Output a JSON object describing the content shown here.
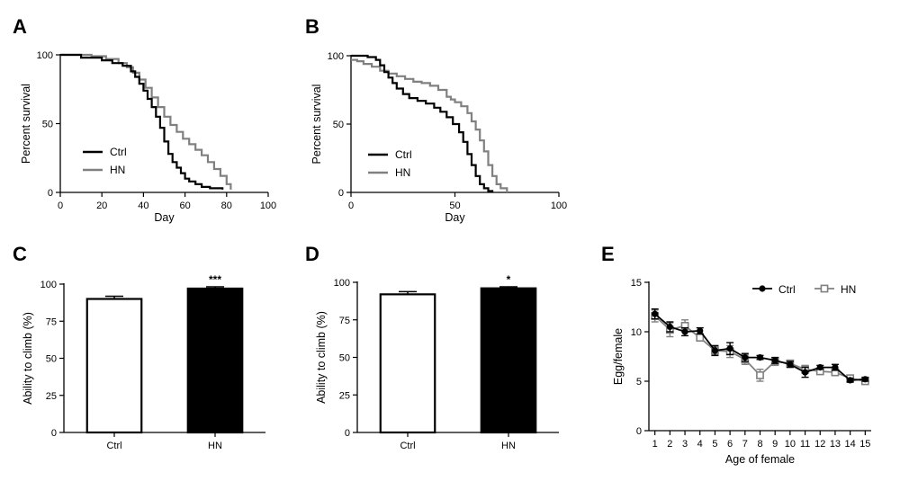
{
  "chart_data": [
    {
      "panel": "A",
      "type": "line",
      "xlabel": "Day",
      "ylabel": "Percent survival",
      "xlim": [
        0,
        100
      ],
      "ylim": [
        0,
        100
      ],
      "xticks": [
        0,
        20,
        40,
        60,
        80,
        100
      ],
      "yticks": [
        0,
        50,
        100
      ],
      "legend_position": "bottom-left",
      "series": [
        {
          "name": "Ctrl",
          "color": "#000000",
          "x": [
            0,
            10,
            20,
            25,
            30,
            34,
            36,
            38,
            40,
            42,
            44,
            46,
            48,
            50,
            52,
            54,
            56,
            58,
            60,
            62,
            65,
            68,
            72,
            78
          ],
          "y": [
            100,
            98,
            96,
            94,
            92,
            88,
            84,
            79,
            74,
            68,
            62,
            55,
            47,
            37,
            28,
            22,
            18,
            14,
            10,
            8,
            6,
            4,
            3,
            2
          ]
        },
        {
          "name": "HN",
          "color": "#808080",
          "x": [
            0,
            15,
            22,
            28,
            32,
            35,
            38,
            41,
            44,
            47,
            50,
            53,
            56,
            59,
            62,
            65,
            68,
            71,
            74,
            77,
            80,
            82
          ],
          "y": [
            100,
            99,
            97,
            94,
            91,
            87,
            82,
            76,
            69,
            62,
            55,
            49,
            44,
            39,
            35,
            31,
            27,
            22,
            17,
            12,
            6,
            2
          ]
        }
      ]
    },
    {
      "panel": "B",
      "type": "line",
      "xlabel": "Day",
      "ylabel": "Percent survival",
      "xlim": [
        0,
        100
      ],
      "ylim": [
        0,
        100
      ],
      "xticks": [
        0,
        50,
        100
      ],
      "yticks": [
        0,
        50,
        100
      ],
      "legend_position": "bottom-left",
      "series": [
        {
          "name": "Ctrl",
          "color": "#000000",
          "x": [
            0,
            8,
            12,
            14,
            16,
            18,
            20,
            22,
            25,
            28,
            32,
            36,
            40,
            43,
            46,
            49,
            52,
            54,
            56,
            58,
            60,
            62,
            64,
            66,
            68
          ],
          "y": [
            100,
            99,
            97,
            93,
            88,
            84,
            80,
            76,
            72,
            69,
            67,
            65,
            62,
            59,
            55,
            50,
            44,
            37,
            28,
            20,
            12,
            6,
            3,
            1,
            0
          ]
        },
        {
          "name": "HN",
          "color": "#808080",
          "x": [
            0,
            3,
            6,
            10,
            14,
            18,
            22,
            26,
            30,
            34,
            38,
            42,
            46,
            48,
            50,
            53,
            56,
            58,
            60,
            62,
            64,
            66,
            68,
            70,
            72,
            75
          ],
          "y": [
            97,
            96,
            94,
            92,
            89,
            87,
            85,
            83,
            81,
            80,
            78,
            75,
            70,
            68,
            66,
            63,
            58,
            52,
            46,
            38,
            30,
            20,
            12,
            6,
            3,
            0
          ]
        }
      ]
    },
    {
      "panel": "C",
      "type": "bar",
      "categories": [
        "Ctrl",
        "HN"
      ],
      "values": [
        90,
        97
      ],
      "errors": [
        1.8,
        1.2
      ],
      "ylabel": "Ability to climb (%)",
      "ylim": [
        0,
        100
      ],
      "yticks": [
        0,
        25,
        50,
        75,
        100
      ],
      "fills": [
        "#ffffff",
        "#000000"
      ],
      "annotations": [
        "",
        "***"
      ]
    },
    {
      "panel": "D",
      "type": "bar",
      "categories": [
        "Ctrl",
        "HN"
      ],
      "values": [
        92,
        96
      ],
      "errors": [
        1.8,
        1.0
      ],
      "ylabel": "Ability to climb (%)",
      "ylim": [
        0,
        100
      ],
      "yticks": [
        0,
        25,
        50,
        75,
        100
      ],
      "fills": [
        "#ffffff",
        "#000000"
      ],
      "annotations": [
        "",
        "*"
      ]
    },
    {
      "panel": "E",
      "type": "line",
      "xlabel": "Age of female",
      "ylabel": "Egg/female",
      "xlim": [
        0.6,
        15.4
      ],
      "ylim": [
        0,
        15
      ],
      "xticks": [
        1,
        2,
        3,
        4,
        5,
        6,
        7,
        8,
        9,
        10,
        11,
        12,
        13,
        14,
        15
      ],
      "yticks": [
        0,
        5,
        10,
        15
      ],
      "legend_position": "top-right",
      "series": [
        {
          "name": "Ctrl",
          "color": "#000000",
          "marker": "circle",
          "x": [
            1,
            2,
            3,
            4,
            5,
            6,
            7,
            8,
            9,
            10,
            11,
            12,
            13,
            14,
            15
          ],
          "y": [
            11.8,
            10.5,
            10.0,
            10.1,
            8.1,
            8.3,
            7.4,
            7.4,
            7.1,
            6.7,
            5.9,
            6.4,
            6.4,
            5.1,
            5.2
          ],
          "err": [
            0.5,
            0.5,
            0.4,
            0.3,
            0.5,
            0.6,
            0.4,
            0.2,
            0.3,
            0.3,
            0.5,
            0.2,
            0.3,
            0.2,
            0.2
          ]
        },
        {
          "name": "HN",
          "color": "#808080",
          "marker": "square",
          "x": [
            1,
            2,
            3,
            4,
            5,
            6,
            7,
            8,
            9,
            10,
            11,
            12,
            13,
            14,
            15
          ],
          "y": [
            11.6,
            10.2,
            10.6,
            9.4,
            8.1,
            8.0,
            7.2,
            5.6,
            7.0,
            6.8,
            6.2,
            6.0,
            5.9,
            5.3,
            5.0
          ],
          "err": [
            0.6,
            0.7,
            0.6,
            0.3,
            0.4,
            0.6,
            0.5,
            0.6,
            0.4,
            0.3,
            0.4,
            0.3,
            0.3,
            0.3,
            0.3
          ]
        }
      ]
    }
  ]
}
